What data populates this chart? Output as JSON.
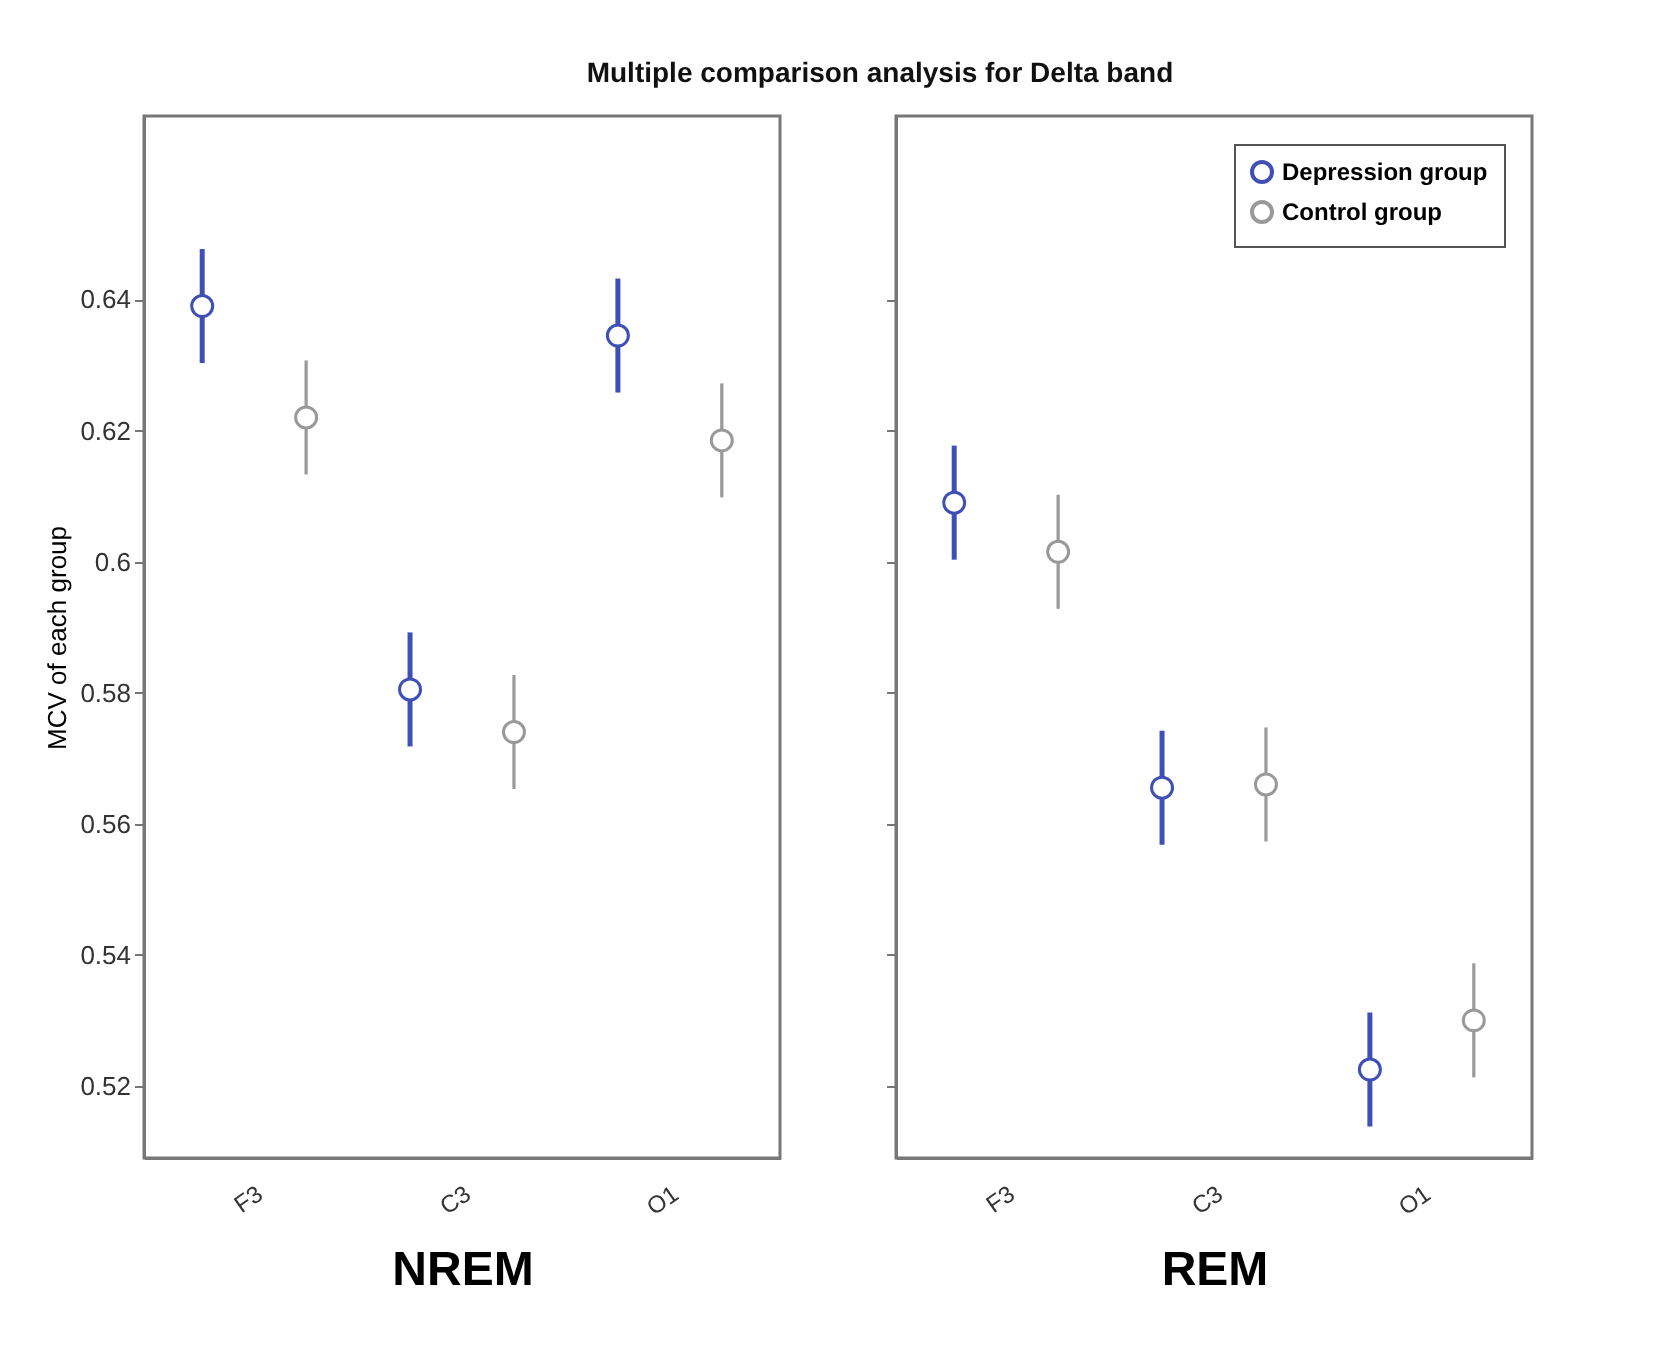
{
  "chart_data": [
    {
      "type": "scatter",
      "title": "Multiple comparison analysis for Delta band",
      "xlabel": "NREM",
      "ylabel": "MCV of each group",
      "categories": [
        "F3",
        "C3",
        "O1"
      ],
      "ylim": [
        0.509,
        0.668
      ],
      "yticks": [
        0.52,
        0.54,
        0.56,
        0.58,
        0.6,
        0.62,
        0.64
      ],
      "marker": "circle",
      "grid": false,
      "legend": false,
      "series": [
        {
          "color": "#3f4fb5",
          "values": [
            0.639,
            0.5805,
            0.6345
          ],
          "errors": [
            0.0087,
            0.0087,
            0.0087
          ]
        },
        {
          "color": "#999999",
          "values": [
            0.622,
            0.574,
            0.6185
          ],
          "errors": [
            0.0087,
            0.0087,
            0.0087
          ]
        }
      ]
    },
    {
      "type": "scatter",
      "xlabel": "REM",
      "categories": [
        "F3",
        "C3",
        "O1"
      ],
      "ylim": [
        0.509,
        0.668
      ],
      "yticks": [
        0.52,
        0.54,
        0.56,
        0.58,
        0.6,
        0.62,
        0.64
      ],
      "tick_labels": "x",
      "marker": "circle",
      "grid": false,
      "legend": "top right",
      "series": [
        {
          "name": "Depression group",
          "color": "#3f4fb5",
          "values": [
            0.609,
            0.5655,
            0.5225
          ],
          "errors": [
            0.0087,
            0.0087,
            0.0087
          ]
        },
        {
          "name": "Control group",
          "color": "#999999",
          "values": [
            0.6015,
            0.566,
            0.53
          ],
          "errors": [
            0.0087,
            0.0087,
            0.0087
          ]
        }
      ]
    }
  ]
}
